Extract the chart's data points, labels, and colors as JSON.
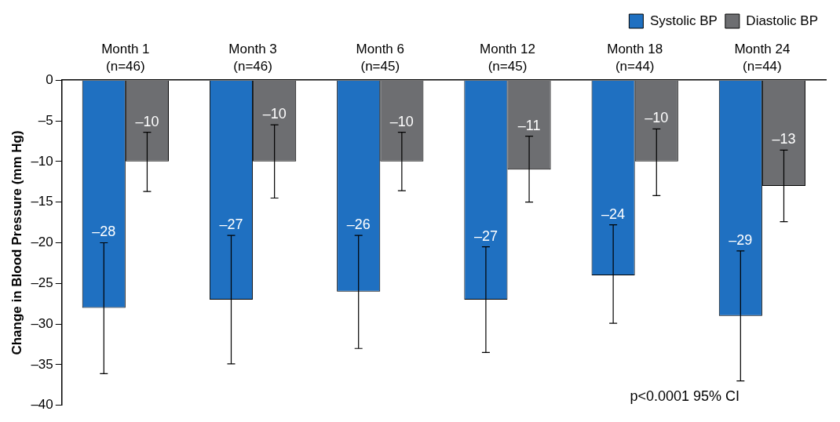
{
  "chart_data": {
    "type": "bar",
    "categories": [
      "Month 1\n(n=46)",
      "Month 3\n(n=46)",
      "Month 6\n(n=45)",
      "Month 12\n(n=45)",
      "Month 18\n(n=44)",
      "Month 24\n(n=44)"
    ],
    "series": [
      {
        "name": "Systolic BP",
        "color": "#1f70c1",
        "values": [
          -28,
          -27,
          -26,
          -27,
          -24,
          -29
        ],
        "value_labels": [
          "–28",
          "–27",
          "–26",
          "–27",
          "–24",
          "–29"
        ],
        "errors": [
          [
            -36.1,
            -20.0
          ],
          [
            -34.9,
            -19.1
          ],
          [
            -33.0,
            -19.1
          ],
          [
            -33.5,
            -20.5
          ],
          [
            -29.9,
            -17.8
          ],
          [
            -37.0,
            -21.0
          ]
        ]
      },
      {
        "name": "Diastolic BP",
        "color": "#6d6e71",
        "values": [
          -10,
          -10,
          -10,
          -11,
          -10,
          -13
        ],
        "value_labels": [
          "–10",
          "–10",
          "–10",
          "–11",
          "–10",
          "–13"
        ],
        "errors": [
          [
            -13.7,
            -6.4
          ],
          [
            -14.5,
            -5.5
          ],
          [
            -13.6,
            -6.4
          ],
          [
            -15.0,
            -6.9
          ],
          [
            -14.2,
            -6.0
          ],
          [
            -17.4,
            -8.6
          ]
        ]
      }
    ],
    "ylabel": "Change in Blood Pressure (mm Hg)",
    "ylim": [
      -40,
      0
    ],
    "yticks": [
      {
        "value": -40,
        "label": "–40"
      },
      {
        "value": -35,
        "label": "–35"
      },
      {
        "value": -30,
        "label": "–30"
      },
      {
        "value": -25,
        "label": "–25"
      },
      {
        "value": -20,
        "label": "–20"
      },
      {
        "value": -15,
        "label": "–15"
      },
      {
        "value": -10,
        "label": "–10"
      },
      {
        "value": -5,
        "label": "–5"
      },
      0
    ],
    "legend": "top right",
    "grid": false,
    "annotations": [
      "p<0.0001 95% CI"
    ]
  }
}
